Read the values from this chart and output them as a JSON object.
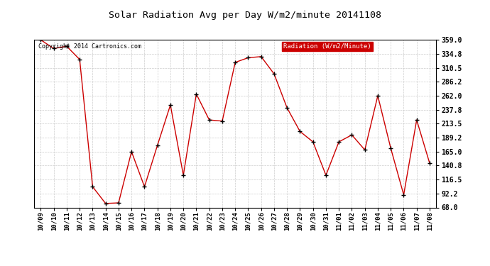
{
  "title": "Solar Radiation Avg per Day W/m2/minute 20141108",
  "copyright_text": "Copyright 2014 Cartronics.com",
  "legend_label": "Radiation (W/m2/Minute)",
  "legend_bg": "#cc0000",
  "legend_text_color": "#ffffff",
  "line_color": "#cc0000",
  "marker_color": "#000000",
  "bg_color": "#ffffff",
  "grid_color": "#cccccc",
  "title_color": "#000000",
  "labels": [
    "10/09",
    "10/10",
    "10/11",
    "10/12",
    "10/13",
    "10/14",
    "10/15",
    "10/16",
    "10/17",
    "10/18",
    "10/19",
    "10/20",
    "10/21",
    "10/22",
    "10/23",
    "10/24",
    "10/25",
    "10/26",
    "10/27",
    "10/28",
    "10/29",
    "10/30",
    "10/31",
    "11/01",
    "11/02",
    "11/03",
    "11/04",
    "11/05",
    "11/06",
    "11/07",
    "11/08"
  ],
  "values": [
    359.0,
    344.0,
    348.0,
    325.0,
    104.0,
    75.0,
    76.0,
    165.0,
    104.0,
    176.0,
    246.0,
    124.0,
    265.0,
    220.0,
    218.0,
    320.0,
    328.0,
    330.0,
    300.0,
    241.0,
    200.0,
    182.0,
    124.0,
    182.0,
    194.0,
    168.0,
    262.0,
    171.0,
    90.0,
    220.0,
    145.0
  ],
  "ylim": [
    68.0,
    359.0
  ],
  "yticks": [
    68.0,
    92.2,
    116.5,
    140.8,
    165.0,
    189.2,
    213.5,
    237.8,
    262.0,
    286.2,
    310.5,
    334.8,
    359.0
  ]
}
